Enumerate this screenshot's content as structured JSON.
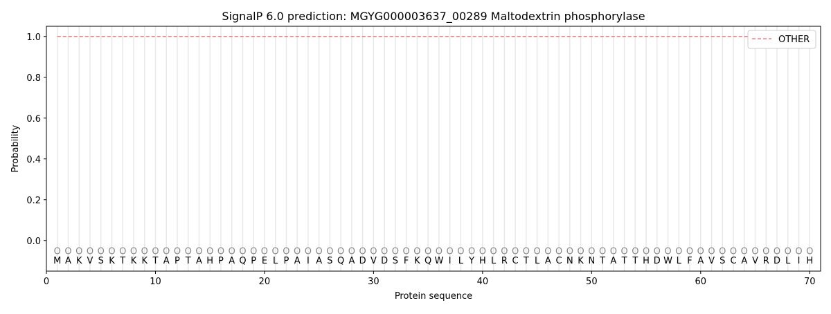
{
  "chart_data": {
    "type": "line",
    "title": "SignalP 6.0 prediction: MGYG000003637_00289 Maltodextrin phosphorylase",
    "xlabel": "Protein sequence",
    "ylabel": "Probability",
    "xlim": [
      0,
      71
    ],
    "ylim": [
      -0.15,
      1.05
    ],
    "xticks": [
      0,
      10,
      20,
      30,
      40,
      50,
      60,
      70
    ],
    "yticks": [
      "0.0",
      "0.2",
      "0.4",
      "0.6",
      "0.8",
      "1.0"
    ],
    "grid": "vertical lines at each residue",
    "legend_position": "top-right",
    "sequence": "MAKVSKTKKTAPTAHPAQPELPAIASQADVDSFKQWILYHLRCTLACNKNTATTHDWLFAVSCAVRDLIH",
    "marker_label": "O",
    "marker_y": -0.05,
    "series": [
      {
        "name": "OTHER",
        "color": "#f08080",
        "style": "dashed",
        "x_start": 1,
        "x_end": 70,
        "value": 1.0
      }
    ]
  }
}
